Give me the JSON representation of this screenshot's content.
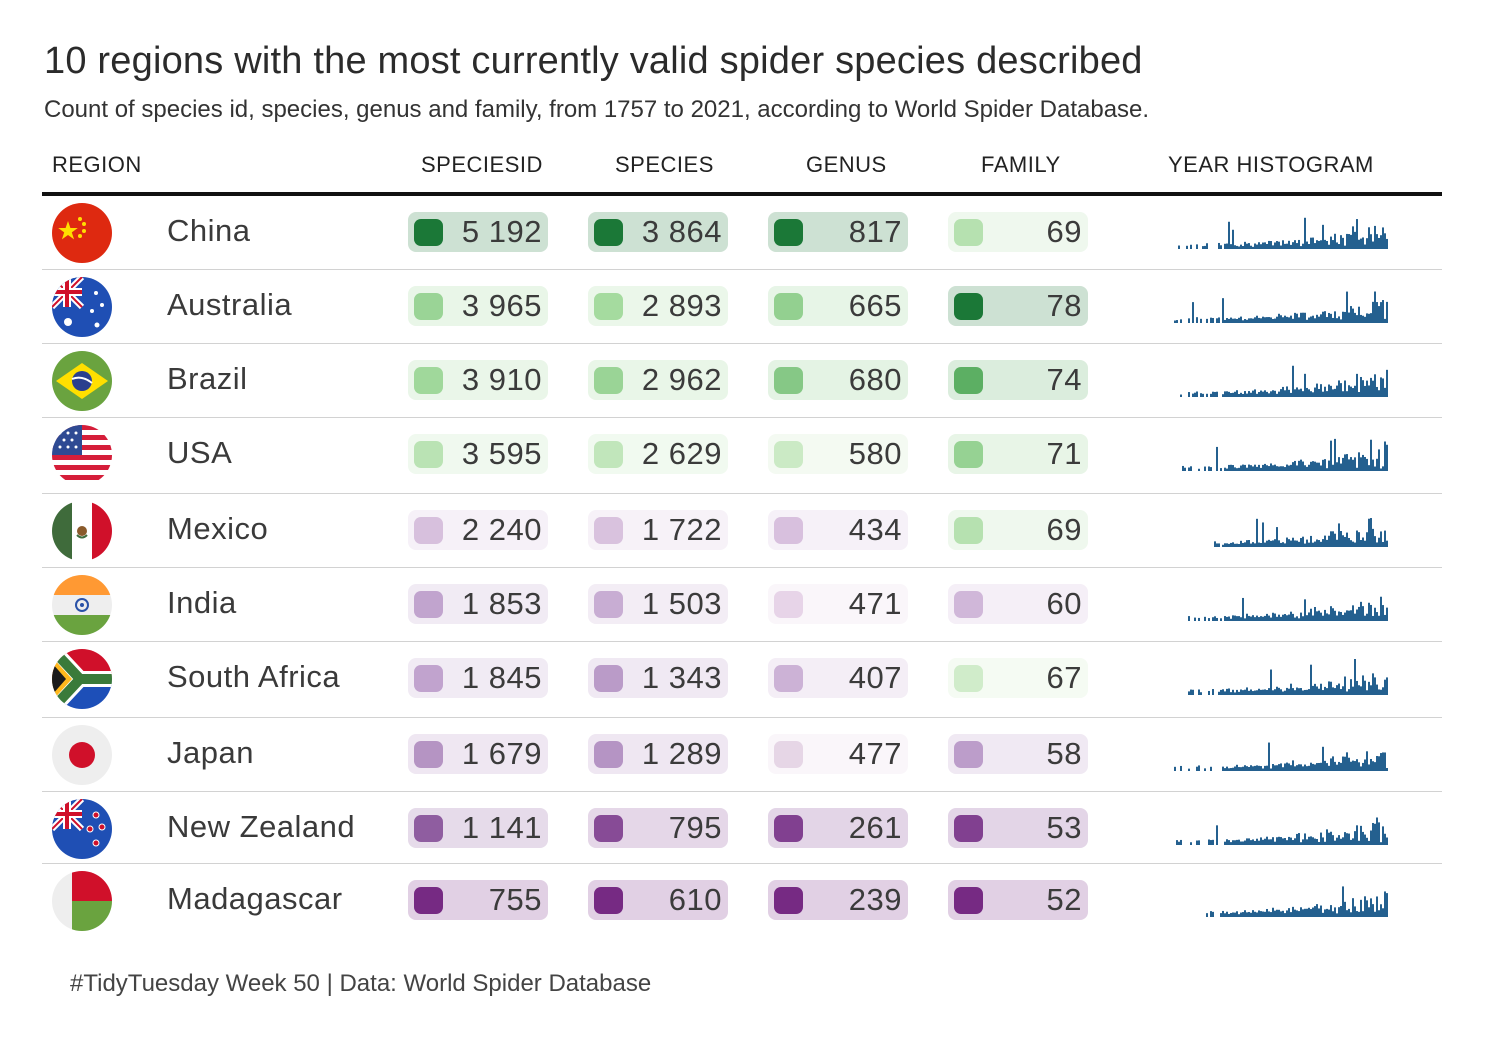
{
  "title": "10 regions with the most currently valid spider species described",
  "subtitle": "Count of species id, species, genus and family, from 1757 to 2021, according to World Spider Database.",
  "caption": "#TidyTuesday Week 50 | Data: World Spider Database",
  "columns": {
    "region": "REGION",
    "speciesid": "SPECIESID",
    "species": "SPECIES",
    "genus": "GENUS",
    "family": "FAMILY",
    "histogram": "YEAR HISTOGRAM"
  },
  "colors": {
    "high_green": "#1b7837",
    "low_purple": "#762a83",
    "histogram": "#24608f",
    "rule": "#111111"
  },
  "chart_data": {
    "type": "table",
    "rows": [
      {
        "region": "China",
        "flag": "china-flag-icon",
        "speciesid": "5 192",
        "species": "3 864",
        "genus": "817",
        "family": "69"
      },
      {
        "region": "Australia",
        "flag": "australia-flag-icon",
        "speciesid": "3 965",
        "species": "2 893",
        "genus": "665",
        "family": "78"
      },
      {
        "region": "Brazil",
        "flag": "brazil-flag-icon",
        "speciesid": "3 910",
        "species": "2 962",
        "genus": "680",
        "family": "74"
      },
      {
        "region": "USA",
        "flag": "usa-flag-icon",
        "speciesid": "3 595",
        "species": "2 629",
        "genus": "580",
        "family": "71"
      },
      {
        "region": "Mexico",
        "flag": "mexico-flag-icon",
        "speciesid": "2 240",
        "species": "1 722",
        "genus": "434",
        "family": "69"
      },
      {
        "region": "India",
        "flag": "india-flag-icon",
        "speciesid": "1 853",
        "species": "1 503",
        "genus": "471",
        "family": "60"
      },
      {
        "region": "South Africa",
        "flag": "south-africa-flag-icon",
        "speciesid": "1 845",
        "species": "1 343",
        "genus": "407",
        "family": "67"
      },
      {
        "region": "Japan",
        "flag": "japan-flag-icon",
        "speciesid": "1 679",
        "species": "1 289",
        "genus": "477",
        "family": "58"
      },
      {
        "region": "New Zealand",
        "flag": "new-zealand-flag-icon",
        "speciesid": "1 141",
        "species": "795",
        "genus": "261",
        "family": "53"
      },
      {
        "region": "Madagascar",
        "flag": "madagascar-flag-icon",
        "speciesid": "755",
        "species": "610",
        "genus": "239",
        "family": "52"
      }
    ]
  }
}
